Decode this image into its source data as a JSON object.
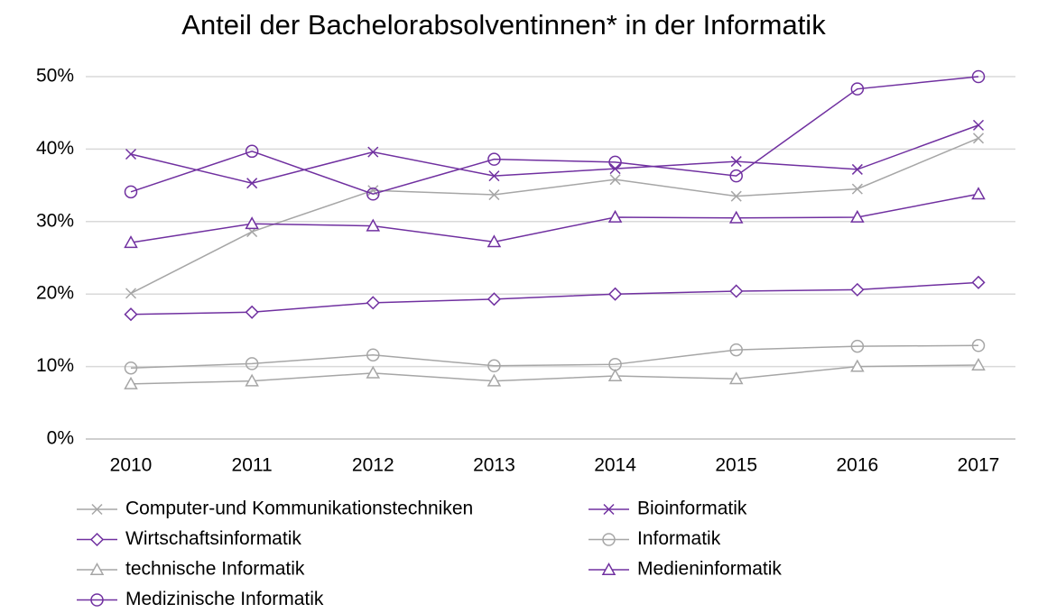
{
  "chart_data": {
    "type": "line",
    "title": "Anteil der Bachelorabsolventinnen* in der Informatik",
    "categories": [
      "2010",
      "2011",
      "2012",
      "2013",
      "2014",
      "2015",
      "2016",
      "2017"
    ],
    "ylim": [
      0,
      50
    ],
    "yticks": [
      {
        "value": 0,
        "label": "0%"
      },
      {
        "value": 10,
        "label": "10%"
      },
      {
        "value": 20,
        "label": "20%"
      },
      {
        "value": 30,
        "label": "30%"
      },
      {
        "value": 40,
        "label": "40%"
      },
      {
        "value": 50,
        "label": "50%"
      }
    ],
    "grid": true,
    "legend": "bottom",
    "series": [
      {
        "name": "Computer-und Kommunikationstechniken",
        "color": "#a6a6a6",
        "marker": "x",
        "values": [
          20.1,
          28.6,
          34.3,
          33.7,
          35.8,
          33.5,
          34.5,
          41.5
        ]
      },
      {
        "name": "Bioinformatik",
        "color": "#7030a0",
        "marker": "x",
        "values": [
          39.3,
          35.3,
          39.6,
          36.3,
          37.3,
          38.3,
          37.2,
          43.3
        ]
      },
      {
        "name": "Wirtschaftsinformatik",
        "color": "#7030a0",
        "marker": "diamond",
        "values": [
          17.2,
          17.5,
          18.8,
          19.3,
          20.0,
          20.4,
          20.6,
          21.6
        ]
      },
      {
        "name": "Informatik",
        "color": "#a6a6a6",
        "marker": "circle",
        "values": [
          9.8,
          10.4,
          11.6,
          10.1,
          10.3,
          12.3,
          12.8,
          12.9
        ]
      },
      {
        "name": "technische Informatik",
        "color": "#a6a6a6",
        "marker": "triangle",
        "values": [
          7.6,
          8.0,
          9.1,
          8.0,
          8.7,
          8.3,
          10.0,
          10.2
        ]
      },
      {
        "name": "Medieninformatik",
        "color": "#7030a0",
        "marker": "triangle",
        "values": [
          27.1,
          29.7,
          29.4,
          27.2,
          30.6,
          30.5,
          30.6,
          33.8
        ]
      },
      {
        "name": "Medizinische Informatik",
        "color": "#7030a0",
        "marker": "circle",
        "values": [
          34.1,
          39.7,
          33.8,
          38.6,
          38.2,
          36.3,
          48.3,
          50.0
        ]
      }
    ]
  }
}
